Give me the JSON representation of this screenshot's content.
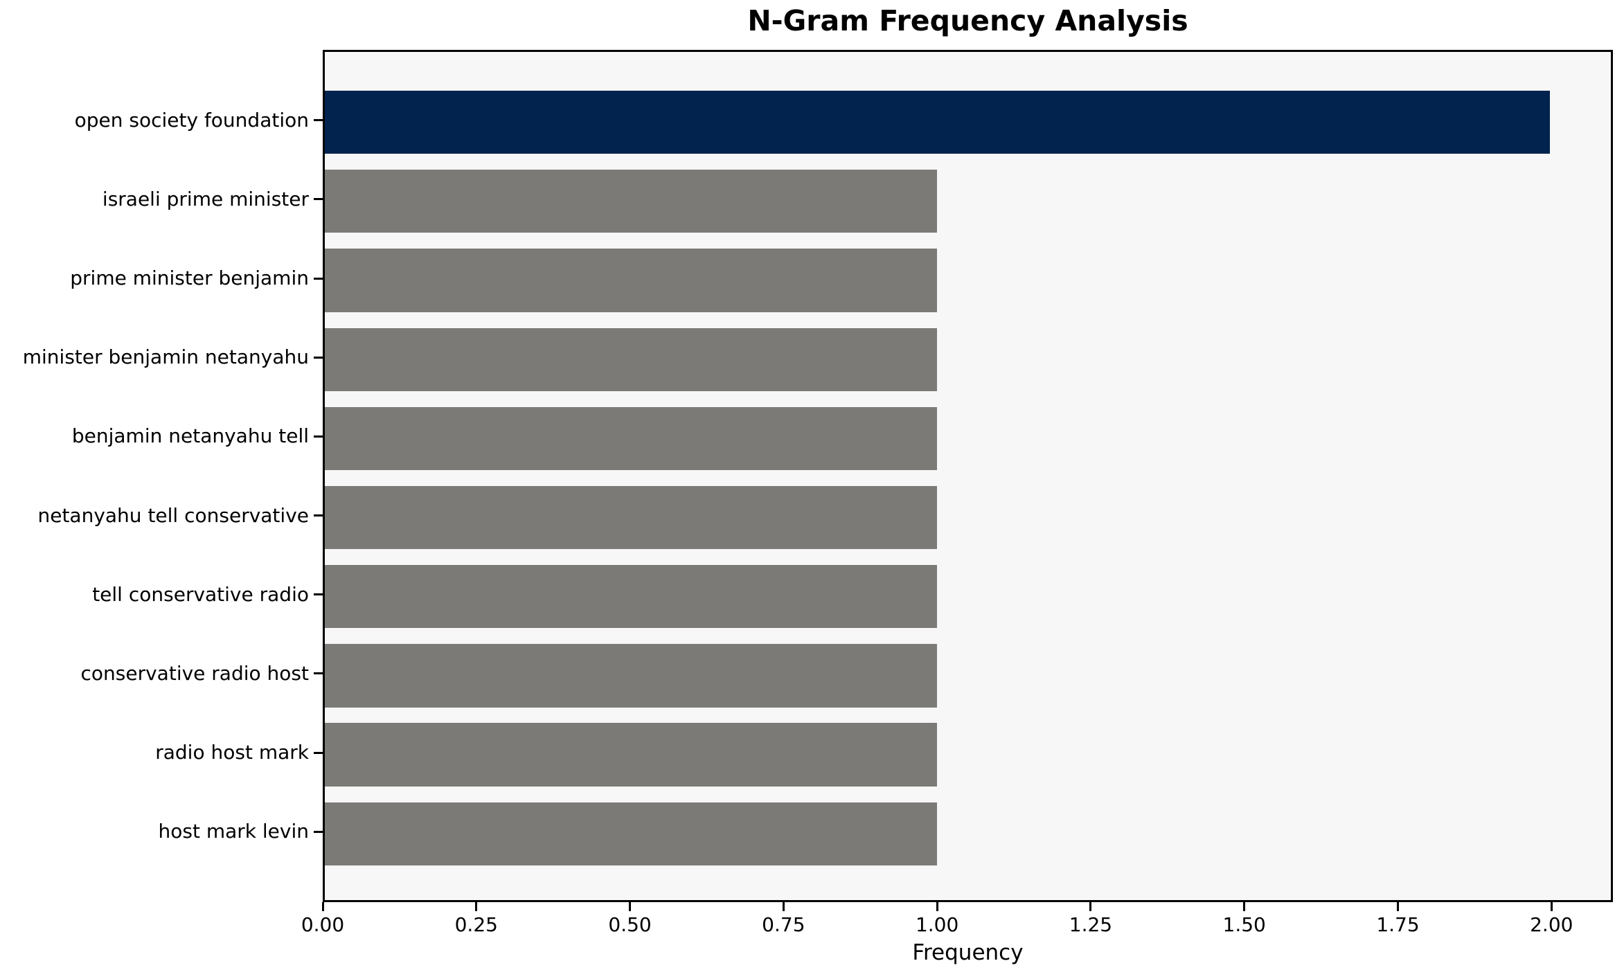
{
  "chart_data": {
    "type": "bar",
    "orientation": "horizontal",
    "title": "N-Gram Frequency Analysis",
    "xlabel": "Frequency",
    "ylabel": "",
    "categories": [
      "open society foundation",
      "israeli prime minister",
      "prime minister benjamin",
      "minister benjamin netanyahu",
      "benjamin netanyahu tell",
      "netanyahu tell conservative",
      "tell conservative radio",
      "conservative radio host",
      "radio host mark",
      "host mark levin"
    ],
    "values": [
      2,
      1,
      1,
      1,
      1,
      1,
      1,
      1,
      1,
      1
    ],
    "bar_colors": [
      "#01234e",
      "#7b7a77",
      "#7b7a77",
      "#7b7a77",
      "#7b7a77",
      "#7b7a77",
      "#7b7a77",
      "#7b7a77",
      "#7b7a77",
      "#7b7a77"
    ],
    "x_ticks": [
      "0.00",
      "0.25",
      "0.50",
      "0.75",
      "1.00",
      "1.25",
      "1.50",
      "1.75",
      "2.00"
    ],
    "x_tick_values": [
      0,
      0.25,
      0.5,
      0.75,
      1,
      1.25,
      1.5,
      1.75,
      2
    ],
    "xlim": [
      0,
      2.1
    ],
    "bar_height_fraction": 0.8,
    "grid": false,
    "legend": null,
    "colors": {
      "highlight": "#01234e",
      "default_bar": "#7b7a77",
      "plot_background": "#f7f7f7",
      "figure_background": "#ffffff",
      "spine": "#000000",
      "text": "#000000"
    }
  }
}
